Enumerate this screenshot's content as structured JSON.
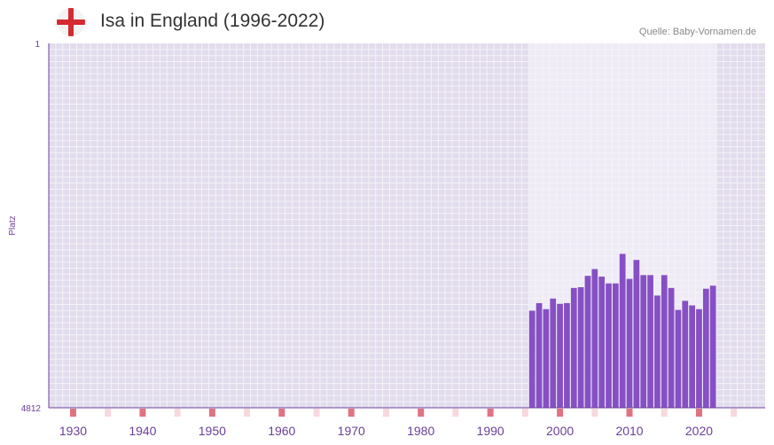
{
  "header": {
    "title": "Isa in England (1996-2022)",
    "source": "Quelle: Baby-Vornamen.de"
  },
  "flag_icon": "england-flag-icon",
  "colors": {
    "bar": "#8650c4",
    "plot_bg": "#e2dced",
    "highlight_bg": "#efebf6",
    "grid": "#f4f2f8",
    "axis": "#6a3f9a",
    "marker_major": "#e07382",
    "marker_minor": "#f7d8dd"
  },
  "chart_data": {
    "type": "bar",
    "title": "Isa in England (1996-2022)",
    "xlabel": "",
    "ylabel": "Platz",
    "y_inverted": true,
    "ylim": [
      4812,
      1
    ],
    "y_tick_labels": [
      "1",
      "4812"
    ],
    "xlim": [
      1926.5,
      2029.5
    ],
    "x_tick_labels": [
      "1930",
      "1940",
      "1950",
      "1960",
      "1970",
      "1980",
      "1990",
      "2000",
      "2010",
      "2020"
    ],
    "highlight_range": [
      1996,
      2022
    ],
    "series": [
      {
        "name": "Platz",
        "years": [
          1996,
          1997,
          1998,
          1999,
          2000,
          2001,
          2002,
          2003,
          2004,
          2005,
          2006,
          2007,
          2008,
          2009,
          2010,
          2011,
          2012,
          2013,
          2014,
          2015,
          2016,
          2017,
          2018,
          2019,
          2020,
          2021,
          2022
        ],
        "values": [
          3530,
          3430,
          3510,
          3370,
          3440,
          3430,
          3230,
          3220,
          3070,
          2980,
          3080,
          3170,
          3170,
          2780,
          3110,
          2860,
          3060,
          3060,
          3330,
          3060,
          3230,
          3520,
          3400,
          3460,
          3510,
          3240,
          3200
        ]
      }
    ]
  }
}
